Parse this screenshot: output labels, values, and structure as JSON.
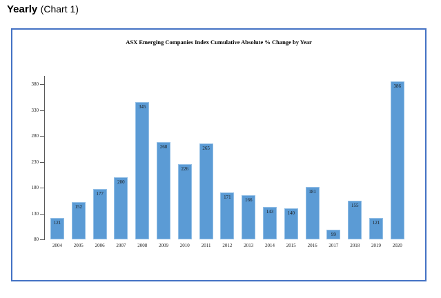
{
  "heading": {
    "title": "Yearly",
    "subtitle": "(Chart 1)"
  },
  "chart_data": {
    "type": "bar",
    "title": "ASX Emerging Companies Index Cumulative Absolute % Change by Year",
    "categories": [
      "2004",
      "2005",
      "2006",
      "2007",
      "2008",
      "2009",
      "2010",
      "2011",
      "2012",
      "2013",
      "2014",
      "2015",
      "2016",
      "2017",
      "2018",
      "2019",
      "2020"
    ],
    "values": [
      121,
      152,
      177,
      200,
      345,
      268,
      226,
      265,
      171,
      166,
      143,
      140,
      181,
      99,
      155,
      121,
      386
    ],
    "xlabel": "",
    "ylabel": "",
    "ylim": [
      80,
      385
    ],
    "yticks": [
      80,
      130,
      180,
      230,
      280,
      330,
      380
    ],
    "grid": false,
    "legend": null,
    "data_labels": "inside-end",
    "colors": {
      "bar_fill": "#5B9BD5",
      "bar_edge": "#93BFE6",
      "bar_label": "#1a1a1a",
      "axis": "#595959",
      "frame_border": "#4472C4"
    }
  }
}
